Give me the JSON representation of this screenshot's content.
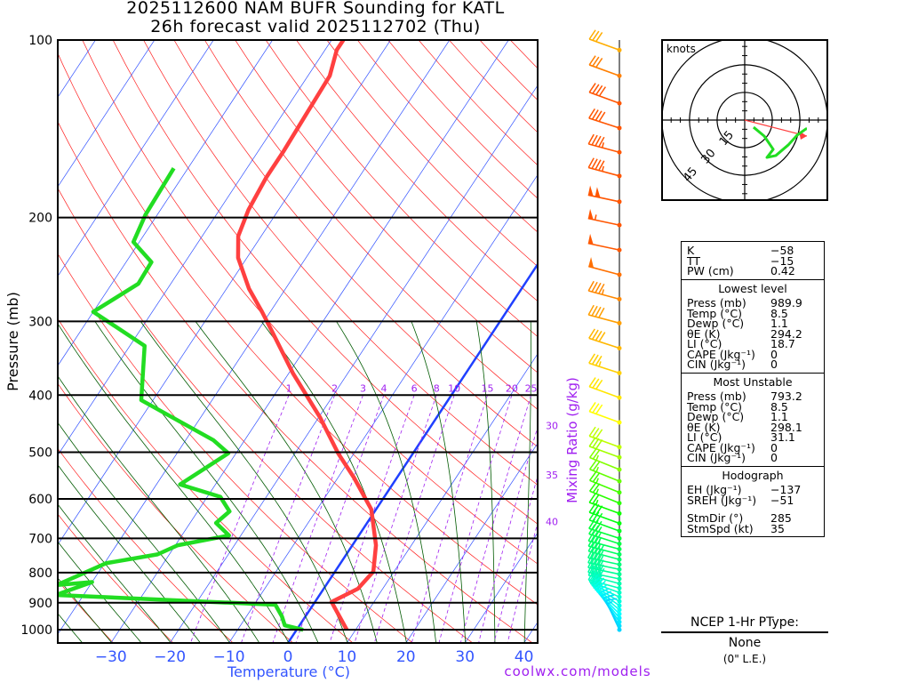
{
  "header": {
    "title_line1": "2025112600 NAM BUFR Sounding for KATL",
    "title_line2": "26h forecast valid 2025112702 (Thu)"
  },
  "chart_data": {
    "type": "line",
    "subtype": "skew-T log-P",
    "xlabel": "Temperature (°C)",
    "ylabel": "Pressure (mb)",
    "x_ticks": [
      -30,
      -20,
      -10,
      0,
      10,
      20,
      30,
      40
    ],
    "y_ticks": [
      100,
      200,
      300,
      400,
      500,
      600,
      700,
      800,
      900,
      1000
    ],
    "ylim": [
      1050,
      100
    ],
    "xlim_at_bottom": [
      -39,
      43
    ],
    "mixing_ratio_label": "Mixing Ratio (g/kg)",
    "mixing_ratio_values": [
      1,
      2,
      3,
      4,
      6,
      8,
      10,
      15,
      20,
      25,
      30,
      35,
      40
    ],
    "series": [
      {
        "name": "Temperature",
        "color": "#ff4040",
        "p": [
          1000,
          897,
          852,
          797,
          719,
          625,
          552,
          502,
          437,
          368,
          309,
          289,
          264,
          234,
          215,
          194,
          171,
          154,
          134,
          115,
          104,
          100
        ],
        "t": [
          8.5,
          2.8,
          5.8,
          6.5,
          4.0,
          -0.8,
          -7.3,
          -12.7,
          -19.7,
          -29.2,
          -38,
          -41.4,
          -46.2,
          -51.5,
          -53.9,
          -55.1,
          -55.7,
          -55.7,
          -56,
          -56.3,
          -58,
          -58
        ]
      },
      {
        "name": "Dewpoint",
        "color": "#22dd22",
        "p": [
          1000,
          983,
          949,
          907,
          873,
          830,
          840,
          813,
          771,
          745,
          719,
          692,
          659,
          630,
          595,
          567,
          502,
          477,
          408,
          330,
          289,
          259,
          238,
          220,
          198,
          165
        ],
        "t": [
          1.1,
          -2.5,
          -4.0,
          -6.4,
          -44.7,
          -40,
          -45.7,
          -43.4,
          -39.7,
          -32,
          -29.6,
          -22,
          -25.6,
          -24.6,
          -27.8,
          -36,
          -31.3,
          -35.3,
          -52,
          -57.5,
          -70,
          -65.5,
          -65.7,
          -71,
          -72,
          -72.4
        ]
      }
    ],
    "winds": {
      "p": [
        104,
        115,
        128,
        141,
        155,
        170,
        188,
        206,
        227,
        250,
        275,
        302,
        333,
        367,
        404,
        445,
        490,
        510,
        535,
        560,
        585,
        610,
        635,
        660,
        680,
        700,
        715,
        730,
        745,
        760,
        775,
        790,
        805,
        820,
        835,
        850,
        865,
        880,
        895,
        910,
        925,
        940,
        955,
        970,
        985,
        1000
      ],
      "dir": [
        250,
        250,
        250,
        252,
        255,
        255,
        258,
        258,
        258,
        255,
        255,
        255,
        252,
        252,
        250,
        250,
        250,
        250,
        248,
        248,
        248,
        248,
        250,
        250,
        250,
        252,
        252,
        255,
        255,
        255,
        258,
        258,
        258,
        258,
        255,
        255,
        250,
        245,
        240,
        235,
        230,
        225,
        220,
        215,
        210,
        205
      ],
      "spd": [
        30,
        30,
        40,
        40,
        45,
        45,
        100,
        55,
        50,
        50,
        45,
        40,
        40,
        35,
        30,
        30,
        30,
        30,
        25,
        25,
        25,
        25,
        25,
        30,
        30,
        30,
        30,
        35,
        35,
        40,
        40,
        40,
        40,
        40,
        40,
        35,
        35,
        30,
        30,
        25,
        25,
        25,
        20,
        20,
        15,
        15
      ]
    },
    "hodograph": {
      "units": "knots",
      "ring_labels": [
        "15",
        "30",
        "45"
      ],
      "u": [
        4.8,
        10.6,
        15.5,
        12.1,
        16.9,
        23.7,
        28.5,
        33.3,
        33.8
      ],
      "v": [
        -3.9,
        -8.7,
        -15.9,
        -20.3,
        -19.3,
        -13.5,
        -8.2,
        -4.8,
        -4.8
      ],
      "storm_motion_u": 33.8,
      "storm_motion_v": -8.7
    }
  },
  "indices": {
    "top": [
      {
        "label": "K",
        "value": "−58"
      },
      {
        "label": "TT",
        "value": "−15"
      },
      {
        "label": "PW (cm)",
        "value": "0.42"
      }
    ],
    "lowest": {
      "title": "Lowest level",
      "rows": [
        {
          "label": "Press (mb)",
          "value": "989.9"
        },
        {
          "label": "Temp (°C)",
          "value": "8.5"
        },
        {
          "label": "Dewp (°C)",
          "value": "1.1"
        },
        {
          "label": "θE (K)",
          "value": "294.2"
        },
        {
          "label": "LI (°C)",
          "value": "18.7"
        },
        {
          "label": "CAPE (Jkg⁻¹)",
          "value": "0"
        },
        {
          "label": "CIN (Jkg⁻¹)",
          "value": "0"
        }
      ]
    },
    "unstable": {
      "title": "Most Unstable",
      "rows": [
        {
          "label": "Press (mb)",
          "value": "793.2"
        },
        {
          "label": "Temp (°C)",
          "value": "8.5"
        },
        {
          "label": "Dewp (°C)",
          "value": "1.1"
        },
        {
          "label": "θE (K)",
          "value": "298.1"
        },
        {
          "label": "LI (°C)",
          "value": "31.1"
        },
        {
          "label": "CAPE (Jkg⁻¹)",
          "value": "0"
        },
        {
          "label": "CIN (Jkg⁻¹)",
          "value": "0"
        }
      ]
    },
    "hodo": {
      "title": "Hodograph",
      "rows": [
        {
          "label": "EH (Jkg⁻¹)",
          "value": "−137"
        },
        {
          "label": "SREH (Jkg⁻¹)",
          "value": "−51"
        },
        {
          "label": "StmDir (°)",
          "value": "285"
        },
        {
          "label": "StmSpd (kt)",
          "value": "35"
        }
      ]
    }
  },
  "ptype": {
    "title": "NCEP 1-Hr PType:",
    "value": "None",
    "amount": "(0\" L.E.)"
  },
  "footer": {
    "credit": "coolwx.com/models"
  }
}
